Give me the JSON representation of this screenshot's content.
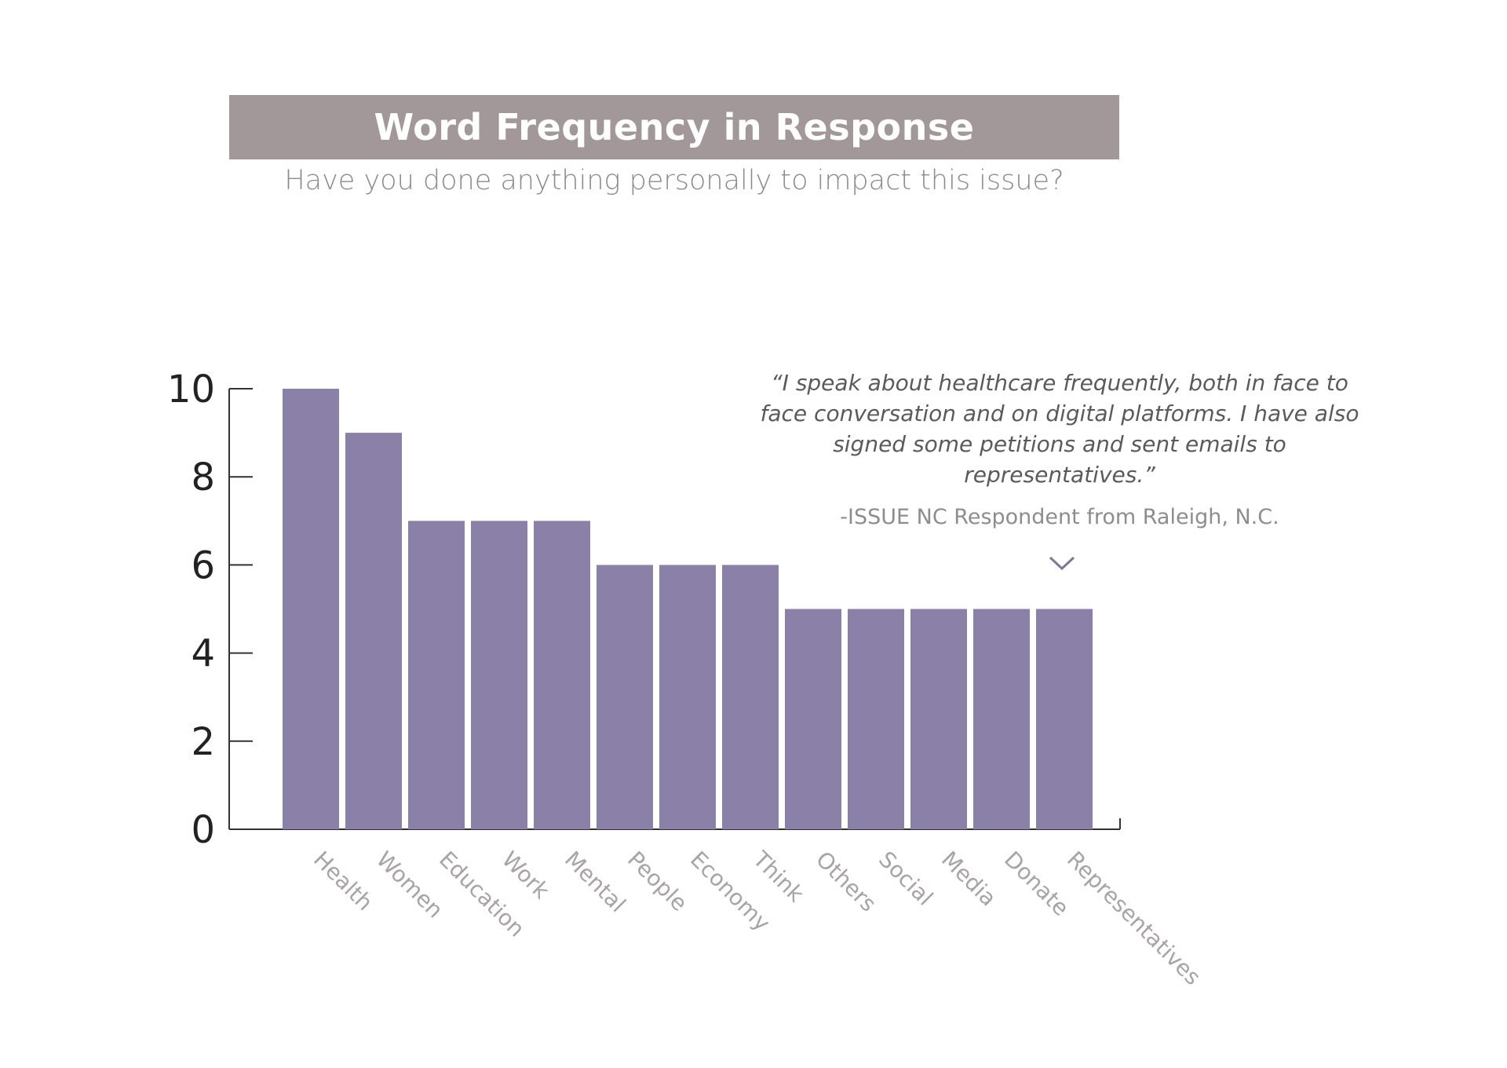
{
  "header": {
    "title": "Word Frequency in Response",
    "subtitle": "Have you done anything personally to impact this issue?"
  },
  "callout": {
    "quote": "“I speak about healthcare frequently, both in face to face conversation and on digital platforms. I have also signed some petitions and sent emails to representatives.”",
    "attribution": "-ISSUE NC Respondent from Raleigh, N.C.",
    "pointer_icon": "chevron-down-icon"
  },
  "colors": {
    "bar": "#8a80a8",
    "banner": "#a29899",
    "axis": "#333333",
    "tick_label": "#222222",
    "category_label": "#a8a3a5"
  },
  "chart_data": {
    "type": "bar",
    "title": "Word Frequency in Response",
    "subtitle": "Have you done anything personally to impact this issue?",
    "xlabel": "",
    "ylabel": "",
    "categories": [
      "Health",
      "Women",
      "Education",
      "Work",
      "Mental",
      "People",
      "Economy",
      "Think",
      "Others",
      "Social",
      "Media",
      "Donate",
      "Representatives"
    ],
    "values": [
      10,
      9,
      7,
      7,
      7,
      6,
      6,
      6,
      5,
      5,
      5,
      5,
      5
    ],
    "ylim": [
      0,
      10
    ],
    "yticks": [
      0,
      2,
      4,
      6,
      8,
      10
    ],
    "grid": false,
    "legend": "none"
  }
}
